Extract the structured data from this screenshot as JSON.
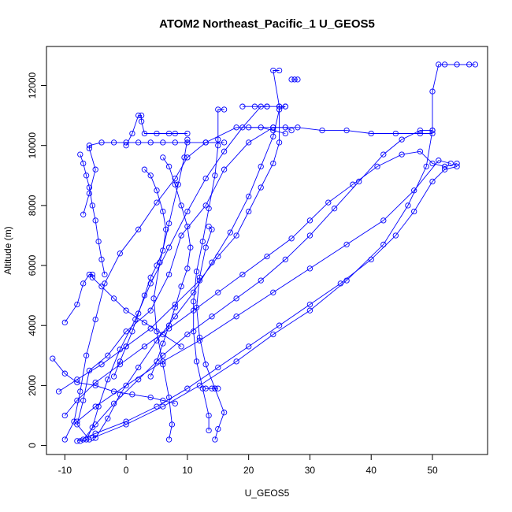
{
  "chart_data": {
    "type": "line",
    "title": "ATOM2 Northeast_Pacific_1 U_GEOS5",
    "xlabel": "U_GEOS5",
    "ylabel": "Altitude (m)",
    "xlim": [
      -13,
      59
    ],
    "ylim": [
      -300,
      13300
    ],
    "xticks": [
      -10,
      0,
      10,
      20,
      30,
      40,
      50
    ],
    "yticks": [
      0,
      2000,
      4000,
      6000,
      8000,
      10000,
      12000
    ],
    "marker": "open-circle",
    "line_style": "solid",
    "grid": false,
    "color": "#0000ff",
    "series": [
      {
        "points": [
          [
            -7.5,
            150
          ],
          [
            -6,
            200
          ],
          [
            -8,
            700
          ],
          [
            -7,
            1500
          ],
          [
            -6,
            2500
          ],
          [
            -3,
            3000
          ],
          [
            0,
            3800
          ],
          [
            4,
            4500
          ],
          [
            7,
            5700
          ],
          [
            9,
            7000
          ],
          [
            13,
            8000
          ],
          [
            16,
            9200
          ],
          [
            20,
            10100
          ],
          [
            24,
            10600
          ],
          [
            26,
            10600
          ],
          [
            27,
            10500
          ]
        ]
      },
      {
        "points": [
          [
            -10,
            200
          ],
          [
            -8.5,
            800
          ],
          [
            -7.5,
            1800
          ],
          [
            -6.5,
            3000
          ],
          [
            -5,
            4200
          ],
          [
            -3.5,
            5400
          ],
          [
            -1,
            6400
          ],
          [
            2,
            7200
          ],
          [
            5,
            8100
          ],
          [
            8,
            8900
          ],
          [
            10,
            9600
          ],
          [
            13,
            10100
          ],
          [
            18,
            10600
          ],
          [
            22,
            10600
          ],
          [
            24,
            10500
          ],
          [
            26,
            10400
          ]
        ]
      },
      {
        "points": [
          [
            -6.5,
            200
          ],
          [
            -5.5,
            600
          ],
          [
            -4.5,
            1300
          ],
          [
            -3,
            2200
          ],
          [
            -1,
            3200
          ],
          [
            1.5,
            4200
          ],
          [
            4,
            5400
          ],
          [
            7,
            6600
          ],
          [
            10,
            7800
          ],
          [
            13,
            8900
          ],
          [
            16,
            9800
          ],
          [
            19,
            10600
          ],
          [
            22,
            11300
          ],
          [
            23,
            11300
          ]
        ]
      },
      {
        "points": [
          [
            -5,
            250
          ],
          [
            -3,
            900
          ],
          [
            -1,
            1700
          ],
          [
            2,
            2600
          ],
          [
            5,
            3500
          ],
          [
            8,
            4300
          ],
          [
            11,
            5100
          ],
          [
            14,
            6100
          ],
          [
            17,
            7100
          ],
          [
            20,
            8300
          ],
          [
            22,
            9300
          ],
          [
            24,
            10300
          ],
          [
            25,
            11200
          ],
          [
            26,
            11300
          ]
        ]
      },
      {
        "points": [
          [
            7,
            200
          ],
          [
            7.5,
            700
          ],
          [
            7,
            1600
          ],
          [
            6,
            2700
          ],
          [
            5,
            3800
          ],
          [
            4.5,
            4900
          ],
          [
            5.5,
            6100
          ],
          [
            7,
            7400
          ],
          [
            8.5,
            8700
          ],
          [
            9.5,
            9600
          ],
          [
            10,
            10200
          ]
        ]
      },
      {
        "points": [
          [
            14.5,
            200
          ],
          [
            15,
            550
          ],
          [
            16,
            1100
          ],
          [
            14.5,
            1900
          ],
          [
            13,
            2700
          ],
          [
            12,
            3600
          ],
          [
            11.5,
            4600
          ],
          [
            12,
            5600
          ],
          [
            13,
            6600
          ],
          [
            14,
            7200
          ],
          [
            13.5,
            7300
          ]
        ]
      },
      {
        "points": [
          [
            13.5,
            500
          ],
          [
            13.5,
            1000
          ],
          [
            12.5,
            1900
          ],
          [
            11.5,
            2800
          ],
          [
            11,
            3800
          ],
          [
            11,
            4800
          ],
          [
            11.5,
            5800
          ],
          [
            12.5,
            6800
          ],
          [
            13.5,
            7900
          ],
          [
            14.5,
            9000
          ],
          [
            15,
            10000
          ],
          [
            15,
            10200
          ],
          [
            15,
            11200
          ],
          [
            16,
            11200
          ]
        ]
      },
      {
        "points": [
          [
            -11,
            1800
          ],
          [
            -8,
            2200
          ],
          [
            -4,
            2700
          ],
          [
            0,
            3300
          ],
          [
            4,
            3900
          ],
          [
            8,
            4700
          ],
          [
            12,
            5500
          ],
          [
            15,
            6300
          ],
          [
            18,
            7000
          ],
          [
            20,
            7800
          ],
          [
            22,
            8600
          ],
          [
            24,
            9400
          ],
          [
            25,
            10100
          ],
          [
            25,
            11300
          ],
          [
            24,
            12500
          ],
          [
            25,
            12500
          ]
        ]
      },
      {
        "points": [
          [
            -12,
            2900
          ],
          [
            -10,
            2400
          ],
          [
            -8,
            2100
          ],
          [
            -5,
            2000
          ],
          [
            -2,
            1800
          ],
          [
            1,
            1700
          ],
          [
            4,
            1600
          ],
          [
            6,
            1500
          ],
          [
            8,
            1400
          ]
        ]
      },
      {
        "points": [
          [
            -10,
            4100
          ],
          [
            -8,
            4700
          ],
          [
            -7,
            5400
          ],
          [
            -6,
            5700
          ],
          [
            -5.5,
            5700
          ],
          [
            -5.5,
            5600
          ],
          [
            -4,
            5300
          ],
          [
            -2,
            4900
          ],
          [
            0,
            4500
          ],
          [
            3,
            4100
          ],
          [
            6,
            3700
          ],
          [
            9,
            3300
          ]
        ]
      },
      {
        "points": [
          [
            -7,
            7700
          ],
          [
            -6,
            8400
          ],
          [
            -5,
            9200
          ],
          [
            -6,
            9900
          ],
          [
            -6,
            10000
          ],
          [
            -4,
            10100
          ],
          [
            -2,
            10100
          ],
          [
            0,
            10100
          ],
          [
            2,
            10100
          ],
          [
            4,
            10100
          ],
          [
            6,
            10100
          ],
          [
            8,
            10100
          ],
          [
            10,
            10100
          ],
          [
            13,
            10100
          ],
          [
            16,
            10100
          ]
        ]
      },
      {
        "points": [
          [
            0,
            10000
          ],
          [
            1,
            10400
          ],
          [
            2,
            11000
          ],
          [
            2.5,
            11000
          ],
          [
            2.5,
            10800
          ],
          [
            3,
            10400
          ],
          [
            5,
            10400
          ],
          [
            7,
            10400
          ],
          [
            8,
            10400
          ],
          [
            10,
            10400
          ]
        ]
      },
      {
        "points": [
          [
            -7.5,
            9700
          ],
          [
            -7,
            9400
          ],
          [
            -6.5,
            9000
          ],
          [
            -6,
            8600
          ],
          [
            -5.5,
            8000
          ],
          [
            -5,
            7500
          ],
          [
            -4.5,
            6800
          ],
          [
            -4,
            6200
          ],
          [
            -3.5,
            5700
          ]
        ]
      },
      {
        "points": [
          [
            3,
            9200
          ],
          [
            4,
            9000
          ],
          [
            5,
            8500
          ],
          [
            6,
            7800
          ],
          [
            6.5,
            7200
          ],
          [
            6,
            6500
          ],
          [
            5,
            6000
          ],
          [
            4,
            5600
          ],
          [
            3,
            5000
          ],
          [
            2,
            4400
          ],
          [
            1,
            3800
          ],
          [
            0,
            3300
          ],
          [
            -1,
            2800
          ],
          [
            -2,
            2300
          ]
        ]
      },
      {
        "points": [
          [
            6,
            9600
          ],
          [
            7,
            9300
          ],
          [
            8,
            8700
          ],
          [
            9,
            8000
          ],
          [
            10,
            7300
          ],
          [
            10.5,
            6600
          ],
          [
            10,
            5900
          ],
          [
            9,
            5300
          ],
          [
            8,
            4600
          ],
          [
            7,
            4000
          ],
          [
            6,
            3400
          ],
          [
            5,
            2800
          ],
          [
            4,
            2300
          ]
        ]
      },
      {
        "points": [
          [
            -10,
            1000
          ],
          [
            -8,
            1500
          ],
          [
            -5,
            2100
          ],
          [
            -1,
            2700
          ],
          [
            3,
            3300
          ],
          [
            7,
            3900
          ],
          [
            11,
            4500
          ],
          [
            15,
            5100
          ],
          [
            19,
            5700
          ],
          [
            23,
            6300
          ],
          [
            27,
            6900
          ],
          [
            30,
            7500
          ],
          [
            33,
            8100
          ],
          [
            37,
            8700
          ],
          [
            41,
            9300
          ],
          [
            45,
            9700
          ],
          [
            48,
            9800
          ],
          [
            50,
            9400
          ],
          [
            52,
            9300
          ],
          [
            54,
            9400
          ]
        ]
      },
      {
        "points": [
          [
            -7,
            200
          ],
          [
            -5,
            700
          ],
          [
            -2,
            1400
          ],
          [
            2,
            2200
          ],
          [
            6,
            3000
          ],
          [
            10,
            3700
          ],
          [
            14,
            4300
          ],
          [
            18,
            4900
          ],
          [
            22,
            5500
          ],
          [
            26,
            6200
          ],
          [
            30,
            7000
          ],
          [
            34,
            7900
          ],
          [
            38,
            8800
          ],
          [
            42,
            9700
          ],
          [
            45,
            10200
          ],
          [
            48,
            10500
          ],
          [
            50,
            10500
          ]
        ]
      },
      {
        "points": [
          [
            -8,
            150
          ],
          [
            -5,
            400
          ],
          [
            0,
            800
          ],
          [
            5,
            1300
          ],
          [
            10,
            1900
          ],
          [
            15,
            2600
          ],
          [
            20,
            3300
          ],
          [
            25,
            4000
          ],
          [
            30,
            4700
          ],
          [
            35,
            5400
          ],
          [
            40,
            6200
          ],
          [
            44,
            7000
          ],
          [
            47,
            7800
          ],
          [
            50,
            8800
          ],
          [
            52,
            9200
          ],
          [
            54,
            9300
          ]
        ]
      },
      {
        "points": [
          [
            -5.5,
            250
          ],
          [
            0,
            700
          ],
          [
            6,
            1300
          ],
          [
            12,
            2000
          ],
          [
            18,
            2800
          ],
          [
            24,
            3700
          ],
          [
            30,
            4500
          ],
          [
            36,
            5500
          ],
          [
            42,
            6700
          ],
          [
            46,
            8000
          ],
          [
            49,
            9300
          ],
          [
            50,
            10500
          ],
          [
            50,
            11800
          ],
          [
            51,
            12700
          ],
          [
            52,
            12700
          ],
          [
            54,
            12700
          ],
          [
            56,
            12700
          ],
          [
            57,
            12700
          ]
        ]
      },
      {
        "points": [
          [
            -8,
            800
          ],
          [
            -5,
            1300
          ],
          [
            0,
            2000
          ],
          [
            6,
            2800
          ],
          [
            12,
            3500
          ],
          [
            18,
            4300
          ],
          [
            24,
            5100
          ],
          [
            30,
            5900
          ],
          [
            36,
            6700
          ],
          [
            42,
            7500
          ],
          [
            47,
            8500
          ],
          [
            51,
            9500
          ],
          [
            53,
            9400
          ]
        ]
      },
      {
        "points": [
          [
            13,
            1900
          ],
          [
            14,
            1900
          ],
          [
            14.5,
            1900
          ],
          [
            15,
            1900
          ]
        ]
      },
      {
        "points": [
          [
            20,
            10600
          ],
          [
            24,
            10600
          ],
          [
            28,
            10600
          ],
          [
            32,
            10500
          ],
          [
            36,
            10500
          ],
          [
            40,
            10400
          ],
          [
            44,
            10400
          ],
          [
            48,
            10400
          ],
          [
            50,
            10400
          ]
        ]
      },
      {
        "points": [
          [
            27,
            12200
          ],
          [
            27.5,
            12200
          ],
          [
            28,
            12200
          ]
        ]
      },
      {
        "points": [
          [
            19,
            11300
          ],
          [
            21,
            11300
          ],
          [
            23,
            11300
          ],
          [
            25,
            11300
          ],
          [
            26,
            11300
          ]
        ]
      }
    ]
  }
}
